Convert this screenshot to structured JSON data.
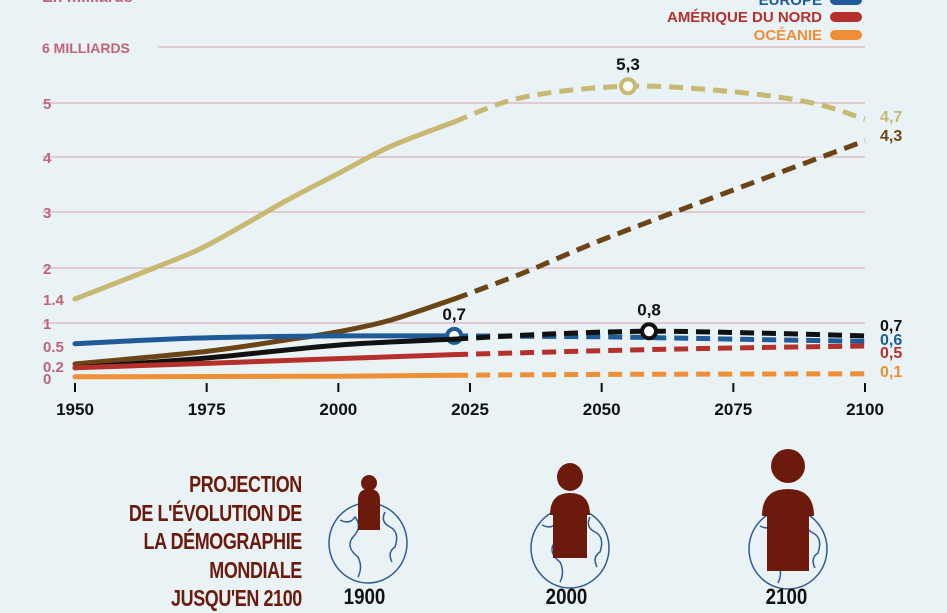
{
  "chart_data": {
    "type": "line",
    "subtitle": "En milliards",
    "x_ticks": [
      "1950",
      "1975",
      "2000",
      "2025",
      "2050",
      "2075",
      "2100"
    ],
    "xlim": [
      1950,
      2100
    ],
    "y_ticks": [
      {
        "value": 6,
        "label": "6 MILLIARDS"
      },
      {
        "value": 5,
        "label": "5"
      },
      {
        "value": 4,
        "label": "4"
      },
      {
        "value": 3,
        "label": "3"
      },
      {
        "value": 2,
        "label": "2"
      },
      {
        "value": 1.4,
        "label": "1.4"
      },
      {
        "value": 1,
        "label": "1"
      },
      {
        "value": 0.5,
        "label": "0.5"
      },
      {
        "value": 0.2,
        "label": "0.2"
      },
      {
        "value": 0,
        "label": "0"
      }
    ],
    "ylim": [
      0,
      6
    ],
    "grid": true,
    "projection_start": 2022,
    "legend": {
      "placement": "top-right",
      "entries": [
        {
          "label": "EUROPE",
          "color": "#1f5a99"
        },
        {
          "label": "AMÉRIQUE DU NORD",
          "color": "#b5302b"
        },
        {
          "label": "OCÉANIE",
          "color": "#ee8f35"
        }
      ]
    },
    "series": [
      {
        "color": "#c9b872",
        "end_label": "4,7",
        "points": [
          [
            1950,
            1.4
          ],
          [
            1965,
            2.0
          ],
          [
            1975,
            2.4
          ],
          [
            1990,
            3.2
          ],
          [
            2000,
            3.7
          ],
          [
            2010,
            4.2
          ],
          [
            2022,
            4.65
          ],
          [
            2035,
            5.1
          ],
          [
            2055,
            5.3
          ],
          [
            2075,
            5.2
          ],
          [
            2090,
            5.0
          ],
          [
            2100,
            4.7
          ]
        ],
        "marker": {
          "x": 2055,
          "y": 5.3,
          "label": "5,3"
        }
      },
      {
        "color": "#6b4516",
        "end_label": "4,3",
        "points": [
          [
            1950,
            0.23
          ],
          [
            1975,
            0.42
          ],
          [
            1990,
            0.63
          ],
          [
            2000,
            0.81
          ],
          [
            2010,
            1.05
          ],
          [
            2022,
            1.4
          ],
          [
            2035,
            1.9
          ],
          [
            2050,
            2.5
          ],
          [
            2075,
            3.4
          ],
          [
            2100,
            4.3
          ]
        ]
      },
      {
        "color": "#1f5a99",
        "name": "EUROPE",
        "end_label": "0,6",
        "points": [
          [
            1950,
            0.55
          ],
          [
            1970,
            0.66
          ],
          [
            1985,
            0.7
          ],
          [
            2000,
            0.72
          ],
          [
            2022,
            0.72
          ],
          [
            2050,
            0.7
          ],
          [
            2075,
            0.65
          ],
          [
            2100,
            0.6
          ]
        ],
        "marker": {
          "x": 2022,
          "y": 0.72,
          "label": "0,7"
        }
      },
      {
        "color": "#111111",
        "end_label": "0,7",
        "points": [
          [
            1950,
            0.17
          ],
          [
            1975,
            0.32
          ],
          [
            2000,
            0.52
          ],
          [
            2022,
            0.65
          ],
          [
            2040,
            0.76
          ],
          [
            2059,
            0.82
          ],
          [
            2080,
            0.78
          ],
          [
            2100,
            0.72
          ]
        ],
        "marker": {
          "x": 2059,
          "y": 0.82,
          "label": "0,8"
        }
      },
      {
        "color": "#b5302b",
        "name": "AMÉRIQUE DU NORD",
        "end_label": "0,5",
        "points": [
          [
            1950,
            0.17
          ],
          [
            1975,
            0.24
          ],
          [
            2000,
            0.31
          ],
          [
            2022,
            0.37
          ],
          [
            2050,
            0.43
          ],
          [
            2075,
            0.47
          ],
          [
            2100,
            0.5
          ]
        ]
      },
      {
        "color": "#ee8f35",
        "name": "OCÉANIE",
        "end_label": "0,1",
        "points": [
          [
            1950,
            0.02
          ],
          [
            2000,
            0.03
          ],
          [
            2022,
            0.045
          ],
          [
            2050,
            0.06
          ],
          [
            2100,
            0.07
          ]
        ]
      }
    ]
  },
  "infographic": {
    "title_lines": [
      "PROJECTION",
      "DE L'ÉVOLUTION DE",
      "LA DÉMOGRAPHIE",
      "MONDIALE",
      "JUSQU'EN 2100"
    ],
    "years": [
      "1900",
      "2000",
      "2100"
    ]
  }
}
